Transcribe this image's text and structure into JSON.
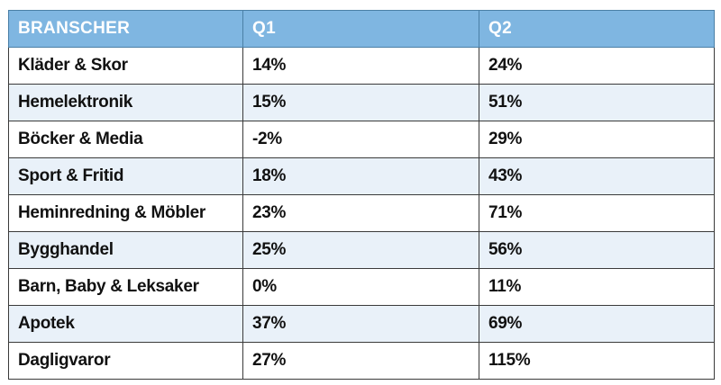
{
  "chart_data": {
    "type": "table",
    "columns": [
      "BRANSCHER",
      "Q1",
      "Q2"
    ],
    "rows": [
      {
        "category": "Kläder & Skor",
        "q1": "14%",
        "q2": "24%"
      },
      {
        "category": "Hemelektronik",
        "q1": "15%",
        "q2": "51%"
      },
      {
        "category": "Böcker & Media",
        "q1": "-2%",
        "q2": "29%"
      },
      {
        "category": "Sport & Fritid",
        "q1": "18%",
        "q2": "43%"
      },
      {
        "category": "Heminredning & Möbler",
        "q1": "23%",
        "q2": "71%"
      },
      {
        "category": "Bygghandel",
        "q1": "25%",
        "q2": "56%"
      },
      {
        "category": "Barn, Baby & Leksaker",
        "q1": "0%",
        "q2": "11%"
      },
      {
        "category": "Apotek",
        "q1": "37%",
        "q2": "69%"
      },
      {
        "category": "Dagligvaror",
        "q1": "27%",
        "q2": "115%"
      }
    ]
  },
  "colors": {
    "header_bg": "#7fb6e1",
    "header_text": "#ffffff",
    "row_alt_bg": "#e9f1f9",
    "border": "#3a3a3a"
  }
}
